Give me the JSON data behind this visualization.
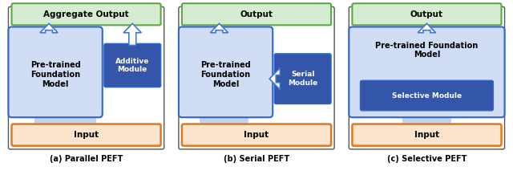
{
  "fig_width": 6.4,
  "fig_height": 2.13,
  "dpi": 100,
  "bg_color": "#ffffff",
  "outer_border_color": "#555555",
  "green_box_color": "#d6ecd2",
  "green_border_color": "#5aaa3f",
  "orange_box_color": "#fce5cc",
  "orange_border_color": "#e07820",
  "white_box_color": "#ffffff",
  "blue_border_color": "#3366cc",
  "light_blue_fill": "#d0ddf5",
  "dark_blue_box_color": "#3355aa",
  "connector_color": "#b8c8e8",
  "arrow_blue": "#4477cc",
  "panels": [
    {
      "title": "(a) Parallel PEFT",
      "output_label": "Aggregate Output",
      "input_label": "Input",
      "model_label": "Pre-trained\nFoundation\nModel",
      "module_label": "Additive\nModule",
      "module_type": "parallel"
    },
    {
      "title": "(b) Serial PEFT",
      "output_label": "Output",
      "input_label": "Input",
      "model_label": "Pre-trained\nFoundation\nModel",
      "module_label": "Serial\nModule",
      "module_type": "serial"
    },
    {
      "title": "(c) Selective PEFT",
      "output_label": "Output",
      "input_label": "Input",
      "model_label": "Pre-trained Foundation\nModel",
      "module_label": "Selective Module",
      "module_type": "selective"
    }
  ]
}
